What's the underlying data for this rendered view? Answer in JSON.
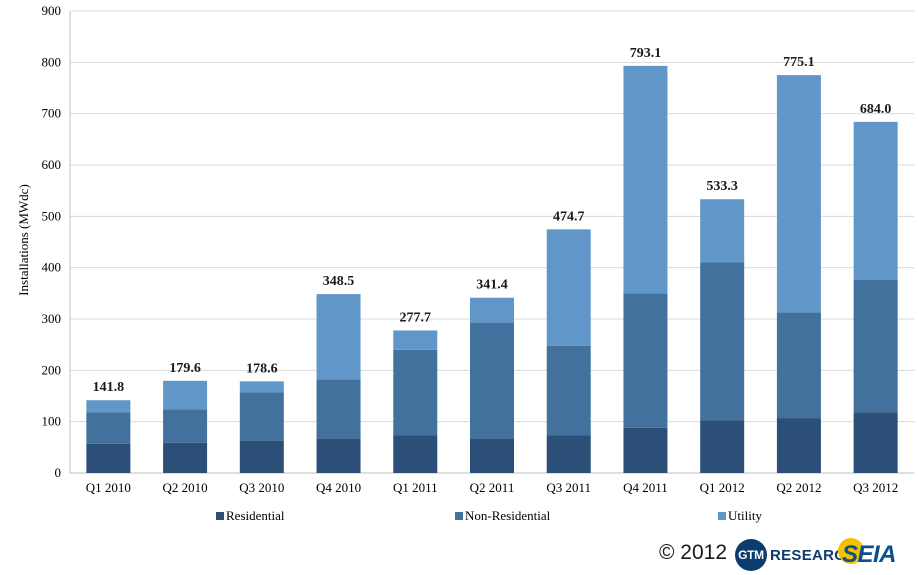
{
  "chart_data": {
    "type": "bar",
    "stacked": true,
    "title": "",
    "xlabel": "",
    "ylabel": "Installations (MWdc)",
    "ylim": [
      0,
      900
    ],
    "yticks": [
      0,
      100,
      200,
      300,
      400,
      500,
      600,
      700,
      800,
      900
    ],
    "grid": true,
    "legend_position": "bottom",
    "categories": [
      "Q1 2010",
      "Q2 2010",
      "Q3 2010",
      "Q4 2010",
      "Q1 2011",
      "Q2 2011",
      "Q3 2011",
      "Q4 2011",
      "Q1 2012",
      "Q2 2012",
      "Q3 2012"
    ],
    "series": [
      {
        "name": "Residential",
        "color": "#2c4f78",
        "values": [
          57,
          59,
          63,
          67,
          73,
          67,
          73,
          88,
          103,
          107,
          118
        ]
      },
      {
        "name": "Non-Residential",
        "color": "#41719c",
        "values": [
          61,
          65,
          94,
          115,
          167,
          226,
          175,
          262,
          307,
          206,
          258
        ]
      },
      {
        "name": "Utility",
        "color": "#6197c8",
        "values": [
          23.8,
          55.6,
          21.6,
          166.5,
          37.7,
          48.4,
          226.7,
          443.1,
          123.3,
          462.1,
          308.0
        ]
      }
    ],
    "totals": [
      "141.8",
      "179.6",
      "178.6",
      "348.5",
      "277.7",
      "341.4",
      "474.7",
      "793.1",
      "533.3",
      "775.1",
      "684.0"
    ]
  },
  "footer": {
    "copyright": "© 2012",
    "gtm_logo_text": "GTM",
    "gtm_word": "RESEARCH",
    "seia_logo": "SEIA"
  }
}
